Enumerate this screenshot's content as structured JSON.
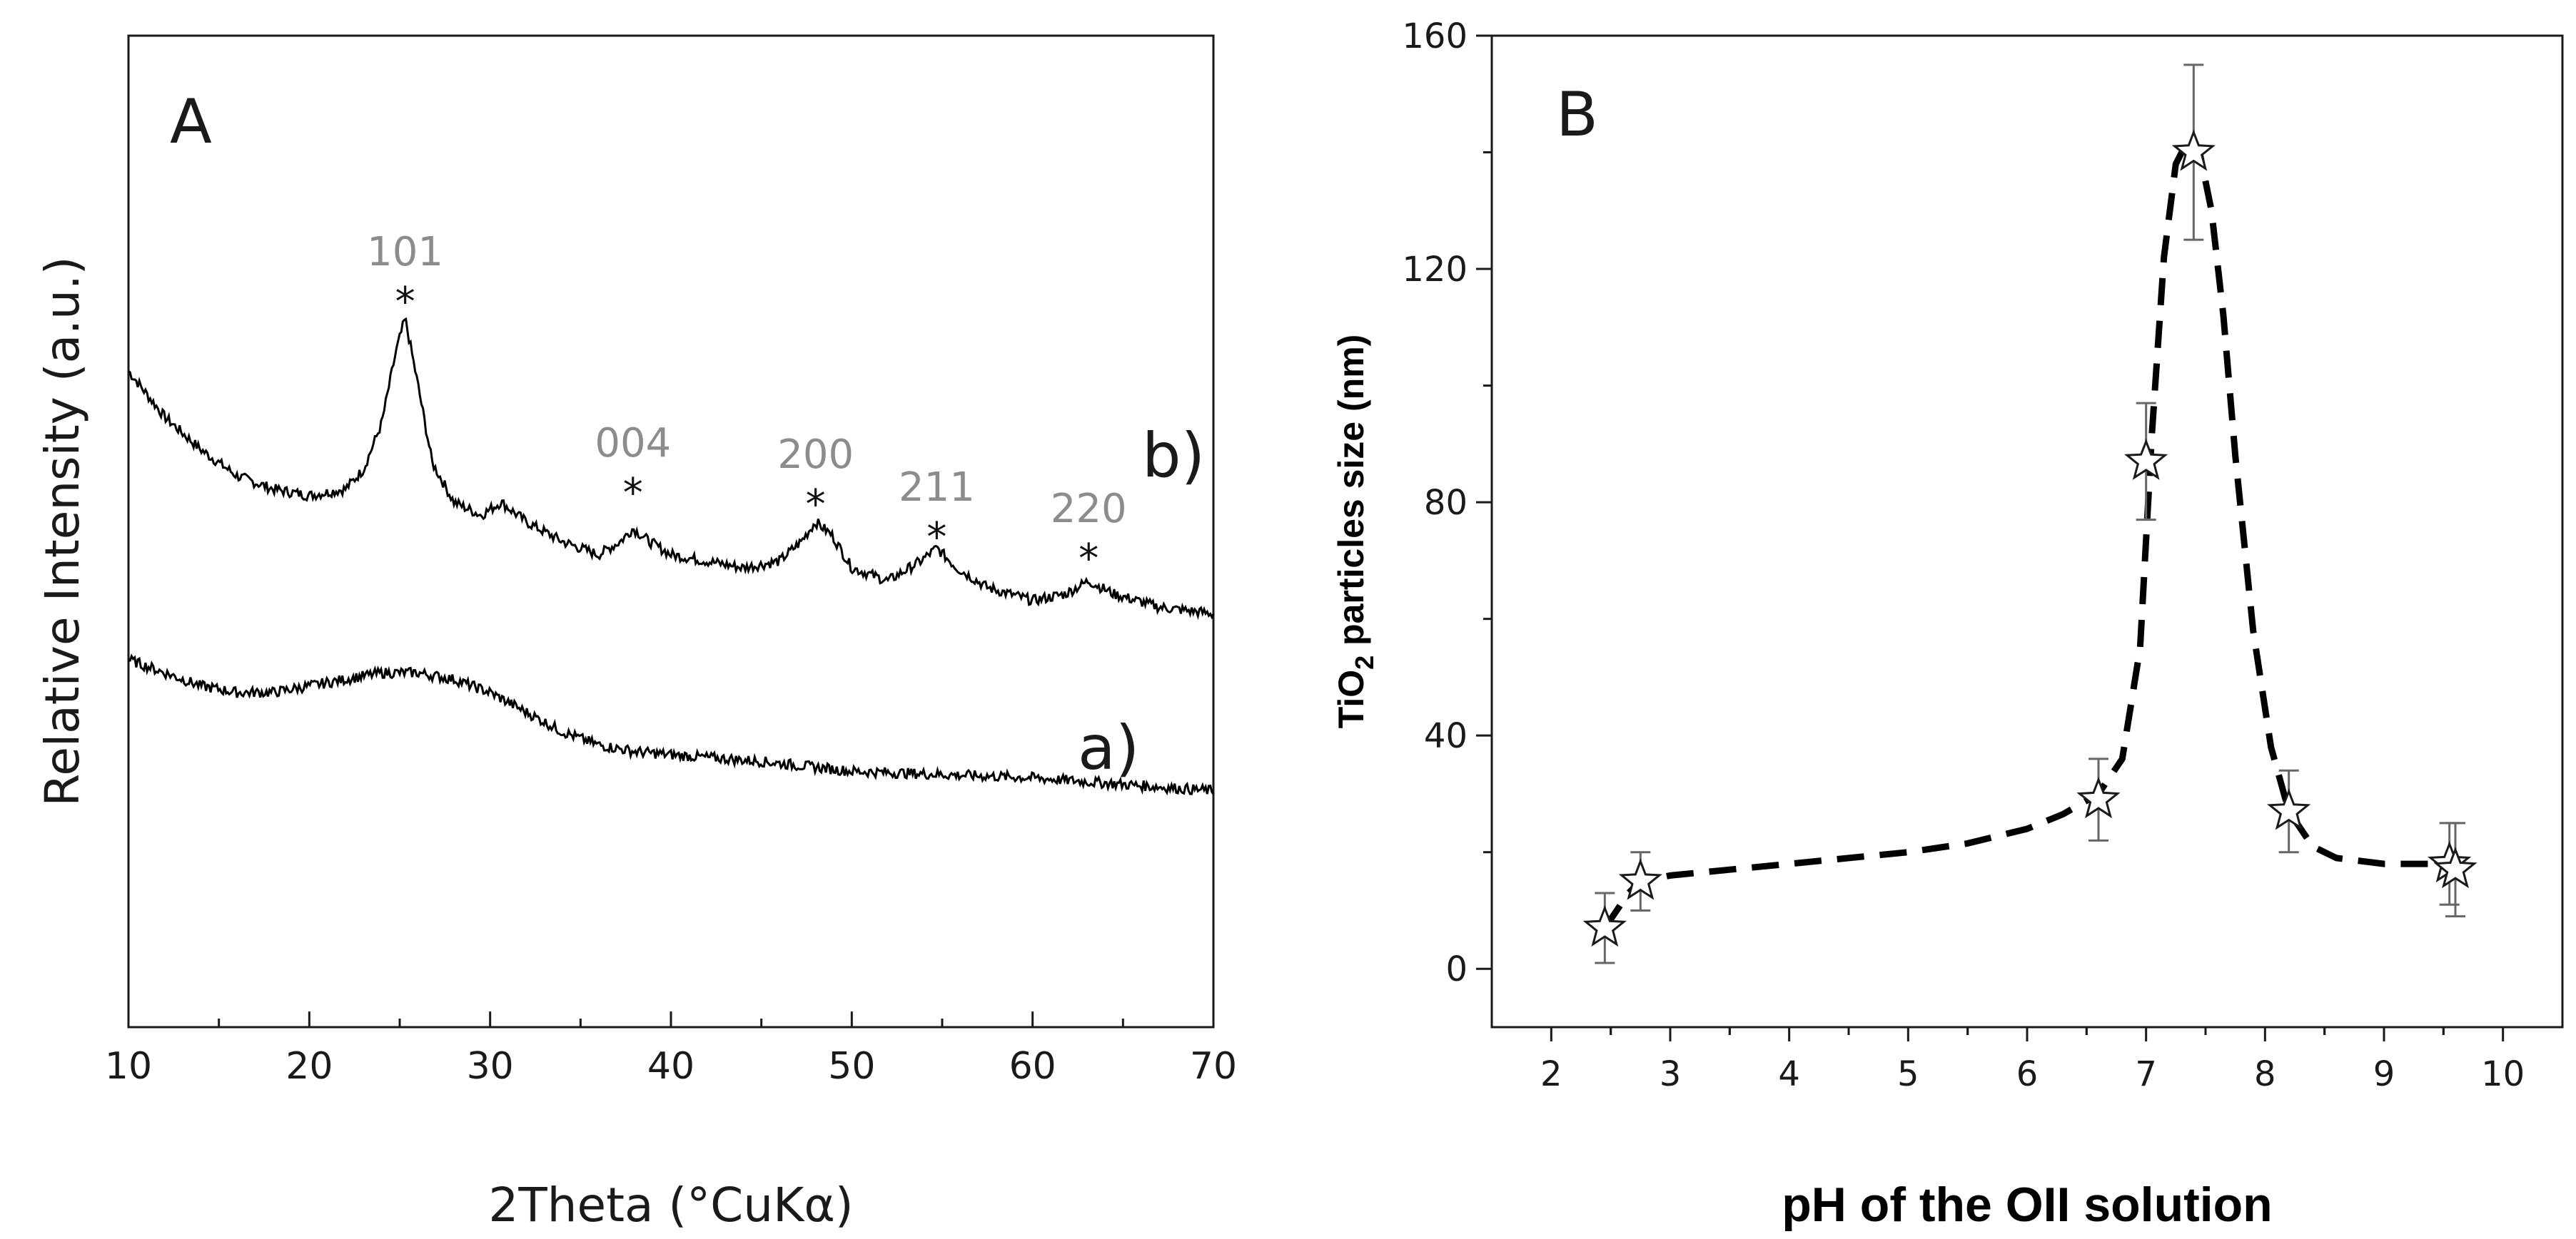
{
  "chart_data": [
    {
      "panel_label": "A",
      "type": "line",
      "xlabel": "2Theta (°CuKα)",
      "ylabel": "Relative Intensity (a.u.)",
      "xlim": [
        10,
        70
      ],
      "x_ticks": [
        "10",
        "20",
        "30",
        "40",
        "50",
        "60",
        "70"
      ],
      "series": [
        {
          "name": "b)",
          "x": [
            10,
            12,
            14,
            16,
            18,
            20,
            22,
            23,
            24,
            24.8,
            25.3,
            26,
            26.8,
            28,
            29.5,
            30.6,
            32,
            34,
            36,
            37.2,
            37.9,
            38.8,
            40,
            42,
            44,
            46,
            47.2,
            48,
            48.9,
            50,
            52,
            53.8,
            54.7,
            55.8,
            57.5,
            60,
            61.8,
            63.1,
            64.5,
            67,
            70
          ],
          "y": [
            100,
            93,
            88,
            84,
            82,
            81,
            82,
            85,
            92,
            103,
            108,
            98,
            86,
            80,
            78,
            80,
            77,
            74,
            72,
            74,
            76,
            74,
            72,
            71,
            70,
            71,
            74,
            77,
            75,
            70,
            68,
            71,
            73,
            70,
            67,
            65,
            66,
            68,
            66,
            64,
            63
          ]
        },
        {
          "name": "a)",
          "x": [
            10,
            12,
            14,
            16,
            18,
            20,
            22,
            24,
            26,
            28,
            30,
            32,
            34,
            36,
            38,
            40,
            45,
            50,
            55,
            60,
            65,
            70
          ],
          "y": [
            56,
            54,
            52,
            51,
            51,
            52,
            53,
            54,
            54,
            53,
            51,
            48,
            45,
            43,
            42,
            41.5,
            40.5,
            39,
            38.5,
            38,
            37,
            36
          ]
        }
      ],
      "peaks": [
        {
          "label": "101",
          "x": 25.3
        },
        {
          "label": "004",
          "x": 37.9
        },
        {
          "label": "200",
          "x": 48.0
        },
        {
          "label": "211",
          "x": 54.7
        },
        {
          "label": "220",
          "x": 63.1
        }
      ],
      "peak_marker": "*"
    },
    {
      "panel_label": "B",
      "type": "scatter",
      "xlabel": "pH of the OII  solution",
      "ylabel_main": "TiO",
      "ylabel_sub": "2",
      "ylabel_rest": " particles size (nm)",
      "xlim": [
        1.5,
        10.5
      ],
      "ylim": [
        -10,
        160
      ],
      "x_ticks": [
        "2",
        "3",
        "4",
        "5",
        "6",
        "7",
        "8",
        "9",
        "10"
      ],
      "y_ticks": [
        "0",
        "40",
        "80",
        "120",
        "160"
      ],
      "points": [
        {
          "x": 2.45,
          "y": 7,
          "err": 6
        },
        {
          "x": 2.75,
          "y": 15,
          "err": 5
        },
        {
          "x": 6.6,
          "y": 29,
          "err": 7
        },
        {
          "x": 7.0,
          "y": 87,
          "err": 10
        },
        {
          "x": 7.4,
          "y": 140,
          "err": 15
        },
        {
          "x": 8.2,
          "y": 27,
          "err": 7
        },
        {
          "x": 9.55,
          "y": 18,
          "err": 7
        },
        {
          "x": 9.6,
          "y": 17,
          "err": 8
        }
      ],
      "fit_curve": {
        "x": [
          2.45,
          2.55,
          2.65,
          2.75,
          3.0,
          3.5,
          4.0,
          4.5,
          5.0,
          5.5,
          6.0,
          6.3,
          6.6,
          6.8,
          6.95,
          7.05,
          7.15,
          7.25,
          7.35,
          7.45,
          7.55,
          7.65,
          7.75,
          7.9,
          8.05,
          8.2,
          8.4,
          8.6,
          8.8,
          9.0,
          9.3,
          9.6
        ],
        "y": [
          7,
          10,
          13,
          15,
          16,
          17,
          18,
          19,
          20,
          21.5,
          24,
          26.5,
          30,
          36,
          55,
          92,
          122,
          138,
          142,
          140,
          130,
          112,
          88,
          58,
          38,
          27,
          21,
          19,
          18.5,
          18,
          18,
          18
        ]
      }
    }
  ],
  "colors": {
    "curve": "#000000",
    "peak_label": "#8c8c8c",
    "error_bar": "#666666",
    "marker_fill": "#ffffff"
  }
}
